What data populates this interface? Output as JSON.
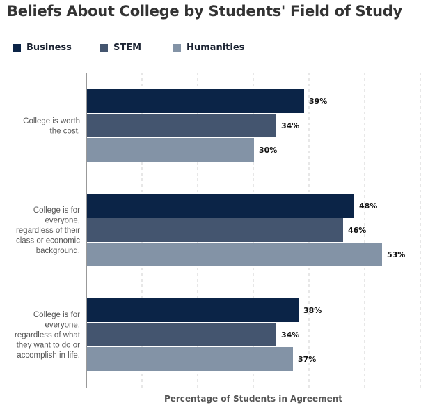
{
  "chart_data": {
    "type": "bar",
    "orientation": "horizontal",
    "title": "Beliefs About College by Students' Field of Study",
    "xlabel": "Percentage of Students in Agreement",
    "ylabel": "",
    "xlim": [
      0,
      60
    ],
    "grid": true,
    "legend_position": "top",
    "categories": [
      [
        "College is worth",
        "the cost."
      ],
      [
        "College is for",
        "everyone,",
        "regardless of their",
        "class or economic",
        "background."
      ],
      [
        "College is for",
        "everyone,",
        "regardless of what",
        "they want to do or",
        "accomplish in life."
      ]
    ],
    "series": [
      {
        "name": "Business",
        "color": "#0b2447",
        "values": [
          39,
          48,
          38
        ],
        "labels": [
          "39%",
          "48%",
          "38%"
        ]
      },
      {
        "name": "STEM",
        "color": "#44556f",
        "values": [
          34,
          46,
          34
        ],
        "labels": [
          "34%",
          "46%",
          "34%"
        ]
      },
      {
        "name": "Humanities",
        "color": "#8393a6",
        "values": [
          30,
          53,
          37
        ],
        "labels": [
          "30%",
          "53%",
          "37%"
        ]
      }
    ]
  }
}
